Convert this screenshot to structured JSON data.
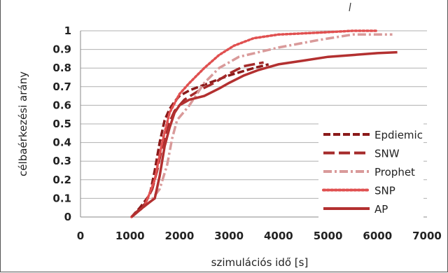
{
  "chart_data": {
    "type": "line",
    "xlabel": "szimulációs idő [s]",
    "ylabel": "célbaérkezési arány",
    "xlim": [
      0,
      7000
    ],
    "ylim": [
      0,
      1
    ],
    "x_ticks": [
      "0",
      "1000",
      "2000",
      "3000",
      "4000",
      "5000",
      "6000",
      "7000"
    ],
    "y_ticks": [
      "0",
      "0.1",
      "0.2",
      "0.3",
      "0.4",
      "0.5",
      "0.6",
      "0.7",
      "0.8",
      "0.9",
      "1"
    ],
    "grid": "horizontal",
    "legend_position": "bottom-right",
    "series": [
      {
        "name": "Epdiemic",
        "color": "#8b1a1a",
        "dash": "dashed",
        "points": [
          [
            1030,
            0
          ],
          [
            1200,
            0.05
          ],
          [
            1400,
            0.12
          ],
          [
            1500,
            0.25
          ],
          [
            1600,
            0.4
          ],
          [
            1700,
            0.52
          ],
          [
            1800,
            0.58
          ],
          [
            1900,
            0.62
          ],
          [
            2000,
            0.65
          ],
          [
            2200,
            0.68
          ],
          [
            2500,
            0.71
          ],
          [
            3000,
            0.76
          ],
          [
            3500,
            0.8
          ],
          [
            3800,
            0.82
          ]
        ]
      },
      {
        "name": "SNW",
        "color": "#a52a2a",
        "dash": "longdash",
        "points": [
          [
            1030,
            0
          ],
          [
            1300,
            0.07
          ],
          [
            1450,
            0.15
          ],
          [
            1550,
            0.25
          ],
          [
            1650,
            0.38
          ],
          [
            1750,
            0.48
          ],
          [
            1900,
            0.57
          ],
          [
            2100,
            0.63
          ],
          [
            2400,
            0.68
          ],
          [
            2700,
            0.72
          ],
          [
            3000,
            0.77
          ],
          [
            3300,
            0.81
          ],
          [
            3700,
            0.83
          ]
        ]
      },
      {
        "name": "Prophet",
        "color": "#d99a9a",
        "dash": "dashdot",
        "points": [
          [
            1030,
            0
          ],
          [
            1400,
            0.08
          ],
          [
            1600,
            0.15
          ],
          [
            1750,
            0.28
          ],
          [
            1850,
            0.42
          ],
          [
            1950,
            0.52
          ],
          [
            2200,
            0.6
          ],
          [
            2500,
            0.72
          ],
          [
            2800,
            0.8
          ],
          [
            3200,
            0.86
          ],
          [
            4000,
            0.91
          ],
          [
            4800,
            0.95
          ],
          [
            5500,
            0.98
          ],
          [
            6300,
            0.98
          ]
        ]
      },
      {
        "name": "SNP",
        "color": "#e05050",
        "dash": "dotted",
        "points": [
          [
            1030,
            0
          ],
          [
            1300,
            0.06
          ],
          [
            1500,
            0.2
          ],
          [
            1650,
            0.4
          ],
          [
            1800,
            0.56
          ],
          [
            2000,
            0.66
          ],
          [
            2200,
            0.72
          ],
          [
            2500,
            0.8
          ],
          [
            2800,
            0.87
          ],
          [
            3100,
            0.92
          ],
          [
            3500,
            0.96
          ],
          [
            4000,
            0.98
          ],
          [
            4800,
            0.99
          ],
          [
            5500,
            1.0
          ],
          [
            6000,
            1.0
          ]
        ]
      },
      {
        "name": "AP",
        "color": "#b33030",
        "dash": "solid",
        "points": [
          [
            1030,
            0
          ],
          [
            1300,
            0.06
          ],
          [
            1500,
            0.1
          ],
          [
            1600,
            0.22
          ],
          [
            1700,
            0.38
          ],
          [
            1800,
            0.48
          ],
          [
            1900,
            0.56
          ],
          [
            2000,
            0.6
          ],
          [
            2200,
            0.63
          ],
          [
            2500,
            0.65
          ],
          [
            2800,
            0.69
          ],
          [
            3000,
            0.72
          ],
          [
            3300,
            0.76
          ],
          [
            3600,
            0.79
          ],
          [
            4000,
            0.82
          ],
          [
            4500,
            0.84
          ],
          [
            5000,
            0.86
          ],
          [
            5500,
            0.87
          ],
          [
            6000,
            0.88
          ],
          [
            6400,
            0.885
          ]
        ]
      }
    ]
  }
}
